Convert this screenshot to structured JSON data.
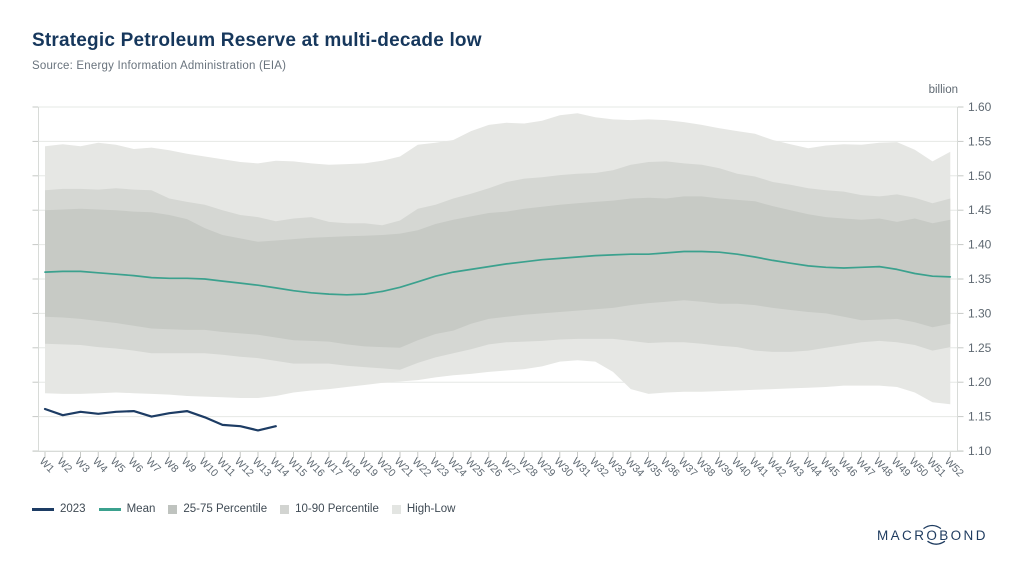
{
  "header": {
    "title": "Strategic Petroleum Reserve at multi-decade low",
    "source": "Source: Energy Information Administration (EIA)"
  },
  "axes": {
    "unit_label": "billion",
    "y_ticks": [
      "1.60",
      "1.55",
      "1.50",
      "1.45",
      "1.40",
      "1.35",
      "1.30",
      "1.25",
      "1.20",
      "1.15",
      "1.10"
    ]
  },
  "legend": {
    "items": [
      {
        "label": "2023",
        "swatch_type": "line",
        "swatch_color": "#1d3c64"
      },
      {
        "label": "Mean",
        "swatch_type": "line",
        "swatch_color": "#3ba18e"
      },
      {
        "label": "25-75 Percentile",
        "swatch_type": "square",
        "swatch_color": "#bfc3bf"
      },
      {
        "label": "10-90 Percentile",
        "swatch_type": "square",
        "swatch_color": "#d2d4d1"
      },
      {
        "label": "High-Low",
        "swatch_type": "square",
        "swatch_color": "#e3e5e2"
      }
    ]
  },
  "logo": {
    "text": "MACROBOND"
  },
  "colors": {
    "title": "#16375c",
    "subtitle": "#69737d",
    "axis_text": "#5f6972",
    "gridline": "#e6e8e5",
    "tick": "#c6c9c6",
    "axis_line": "#d8dbd8",
    "line_2023": "#1d3c64",
    "line_mean": "#3ba18e",
    "band_25_75": "#c7cac5",
    "band_10_90": "#d5d7d3",
    "band_high_low": "#e6e7e4"
  },
  "chart_data": {
    "type": "line",
    "title": "Strategic Petroleum Reserve at multi-decade low",
    "source": "Energy Information Administration (EIA)",
    "unit": "billion",
    "ylim": [
      1.1,
      1.6
    ],
    "y_tick_step": 0.05,
    "grid": true,
    "legend_position": "bottom-left",
    "x_categories": [
      "W1",
      "W2",
      "W3",
      "W4",
      "W5",
      "W6",
      "W7",
      "W8",
      "W9",
      "W10",
      "W11",
      "W12",
      "W13",
      "W14",
      "W15",
      "W16",
      "W17",
      "W18",
      "W19",
      "W20",
      "W21",
      "W22",
      "W23",
      "W24",
      "W25",
      "W26",
      "W27",
      "W28",
      "W29",
      "W30",
      "W31",
      "W32",
      "W33",
      "W34",
      "W35",
      "W36",
      "W37",
      "W38",
      "W39",
      "W40",
      "W41",
      "W42",
      "W43",
      "W44",
      "W45",
      "W46",
      "W47",
      "W48",
      "W49",
      "W50",
      "W51",
      "W52"
    ],
    "series": [
      {
        "name": "2023",
        "type": "line",
        "color": "#1d3c64",
        "values": [
          1.161,
          1.152,
          1.157,
          1.154,
          1.157,
          1.158,
          1.15,
          1.155,
          1.158,
          1.149,
          1.138,
          1.136,
          1.13,
          1.136
        ]
      },
      {
        "name": "Mean",
        "type": "line",
        "color": "#3ba18e",
        "values": [
          1.36,
          1.361,
          1.361,
          1.359,
          1.357,
          1.355,
          1.352,
          1.351,
          1.351,
          1.35,
          1.347,
          1.344,
          1.341,
          1.337,
          1.333,
          1.33,
          1.328,
          1.327,
          1.328,
          1.332,
          1.338,
          1.346,
          1.354,
          1.36,
          1.364,
          1.368,
          1.372,
          1.375,
          1.378,
          1.38,
          1.382,
          1.384,
          1.385,
          1.386,
          1.386,
          1.388,
          1.39,
          1.39,
          1.389,
          1.386,
          1.382,
          1.377,
          1.373,
          1.369,
          1.367,
          1.366,
          1.367,
          1.368,
          1.364,
          1.358,
          1.354,
          1.353
        ]
      },
      {
        "name": "25-75 Percentile",
        "type": "band",
        "color": "#c7cac5",
        "upper": [
          1.45,
          1.451,
          1.452,
          1.451,
          1.45,
          1.448,
          1.447,
          1.443,
          1.437,
          1.424,
          1.414,
          1.409,
          1.404,
          1.406,
          1.408,
          1.41,
          1.411,
          1.412,
          1.413,
          1.414,
          1.416,
          1.421,
          1.43,
          1.436,
          1.441,
          1.446,
          1.448,
          1.452,
          1.455,
          1.458,
          1.46,
          1.462,
          1.464,
          1.467,
          1.468,
          1.467,
          1.47,
          1.47,
          1.467,
          1.465,
          1.463,
          1.456,
          1.45,
          1.444,
          1.44,
          1.438,
          1.436,
          1.438,
          1.433,
          1.438,
          1.431,
          1.436
        ],
        "lower": [
          1.295,
          1.294,
          1.292,
          1.289,
          1.286,
          1.282,
          1.278,
          1.277,
          1.276,
          1.276,
          1.273,
          1.271,
          1.269,
          1.265,
          1.261,
          1.26,
          1.259,
          1.255,
          1.252,
          1.251,
          1.25,
          1.261,
          1.27,
          1.275,
          1.285,
          1.292,
          1.295,
          1.298,
          1.3,
          1.302,
          1.304,
          1.306,
          1.308,
          1.312,
          1.315,
          1.317,
          1.319,
          1.317,
          1.314,
          1.314,
          1.312,
          1.308,
          1.305,
          1.302,
          1.3,
          1.295,
          1.29,
          1.291,
          1.292,
          1.287,
          1.28,
          1.285
        ]
      },
      {
        "name": "10-90 Percentile",
        "type": "band",
        "color": "#d5d7d3",
        "upper": [
          1.479,
          1.481,
          1.481,
          1.48,
          1.482,
          1.48,
          1.479,
          1.467,
          1.462,
          1.458,
          1.45,
          1.443,
          1.44,
          1.434,
          1.438,
          1.44,
          1.433,
          1.431,
          1.431,
          1.428,
          1.435,
          1.452,
          1.458,
          1.467,
          1.474,
          1.482,
          1.491,
          1.496,
          1.498,
          1.501,
          1.503,
          1.504,
          1.508,
          1.516,
          1.52,
          1.521,
          1.518,
          1.516,
          1.511,
          1.503,
          1.499,
          1.491,
          1.487,
          1.482,
          1.479,
          1.477,
          1.472,
          1.47,
          1.473,
          1.468,
          1.46,
          1.467
        ],
        "lower": [
          1.256,
          1.255,
          1.254,
          1.251,
          1.249,
          1.246,
          1.242,
          1.242,
          1.242,
          1.242,
          1.24,
          1.237,
          1.235,
          1.231,
          1.227,
          1.227,
          1.227,
          1.224,
          1.222,
          1.22,
          1.218,
          1.228,
          1.236,
          1.242,
          1.248,
          1.255,
          1.258,
          1.259,
          1.26,
          1.262,
          1.263,
          1.263,
          1.263,
          1.26,
          1.257,
          1.258,
          1.258,
          1.256,
          1.253,
          1.251,
          1.246,
          1.244,
          1.244,
          1.246,
          1.25,
          1.254,
          1.258,
          1.26,
          1.258,
          1.254,
          1.246,
          1.251
        ]
      },
      {
        "name": "High-Low",
        "type": "band",
        "color": "#e6e7e4",
        "upper": [
          1.543,
          1.546,
          1.543,
          1.548,
          1.545,
          1.539,
          1.541,
          1.537,
          1.532,
          1.528,
          1.524,
          1.52,
          1.518,
          1.522,
          1.521,
          1.518,
          1.516,
          1.517,
          1.518,
          1.522,
          1.528,
          1.545,
          1.548,
          1.552,
          1.565,
          1.574,
          1.577,
          1.576,
          1.58,
          1.588,
          1.591,
          1.585,
          1.582,
          1.581,
          1.582,
          1.581,
          1.578,
          1.574,
          1.569,
          1.565,
          1.561,
          1.552,
          1.546,
          1.54,
          1.544,
          1.546,
          1.545,
          1.548,
          1.549,
          1.538,
          1.521,
          1.535
        ],
        "lower": [
          1.184,
          1.183,
          1.183,
          1.184,
          1.185,
          1.184,
          1.183,
          1.182,
          1.18,
          1.179,
          1.178,
          1.177,
          1.177,
          1.18,
          1.185,
          1.188,
          1.19,
          1.193,
          1.196,
          1.199,
          1.201,
          1.203,
          1.207,
          1.21,
          1.212,
          1.215,
          1.217,
          1.219,
          1.223,
          1.23,
          1.232,
          1.23,
          1.215,
          1.19,
          1.183,
          1.185,
          1.186,
          1.186,
          1.187,
          1.188,
          1.189,
          1.19,
          1.191,
          1.192,
          1.193,
          1.195,
          1.195,
          1.195,
          1.193,
          1.185,
          1.171,
          1.168
        ]
      }
    ]
  }
}
